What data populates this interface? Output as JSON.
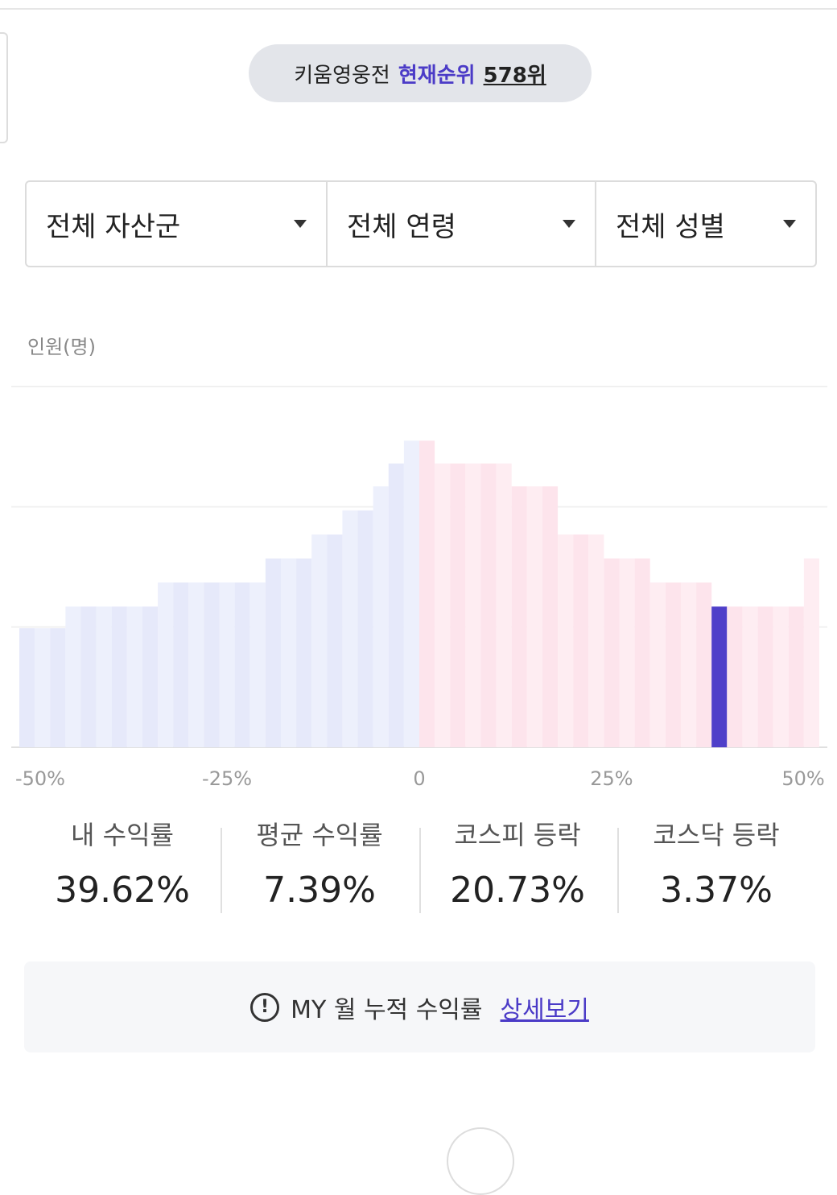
{
  "rank": {
    "event": "키움영웅전",
    "label": "현재순위",
    "value": "578위"
  },
  "filters": [
    "전체 자산군",
    "전체 연령",
    "전체 성별"
  ],
  "chart_data": {
    "type": "histogram",
    "y_label": "인원(명)",
    "bins": [
      -52,
      -50,
      -48,
      -46,
      -44,
      -42,
      -40,
      -38,
      -36,
      -34,
      -32,
      -30,
      -28,
      -26,
      -24,
      -22,
      -20,
      -18,
      -16,
      -14,
      -12,
      -10,
      -8,
      -6,
      -4,
      -2,
      0,
      2,
      4,
      6,
      8,
      10,
      12,
      14,
      16,
      18,
      20,
      22,
      24,
      26,
      28,
      30,
      32,
      34,
      36,
      38,
      40,
      42,
      44,
      46,
      48,
      50,
      52
    ],
    "values": [
      0.99,
      0.99,
      0.99,
      1.17,
      1.17,
      1.17,
      1.17,
      1.17,
      1.17,
      1.37,
      1.37,
      1.37,
      1.37,
      1.37,
      1.37,
      1.37,
      1.57,
      1.57,
      1.57,
      1.77,
      1.77,
      1.97,
      1.97,
      2.17,
      2.36,
      2.55,
      2.55,
      2.36,
      2.36,
      2.36,
      2.36,
      2.36,
      2.17,
      2.17,
      2.17,
      1.77,
      1.77,
      1.77,
      1.57,
      1.57,
      1.57,
      1.37,
      1.37,
      1.37,
      1.37,
      1.17,
      1.17,
      1.17,
      1.17,
      1.17,
      1.17,
      1.57
    ],
    "colors": [
      "#e6e9fa",
      "#edf0fc",
      "#e6e9fa",
      "#edf0fc",
      "#e6e9fa",
      "#edf0fc",
      "#e6e9fa",
      "#edf0fc",
      "#e6e9fa",
      "#edf0fc",
      "#e6e9fa",
      "#edf0fc",
      "#e6e9fa",
      "#edf0fc",
      "#e6e9fa",
      "#edf0fc",
      "#e6e9fa",
      "#edf0fc",
      "#e6e9fa",
      "#edf0fc",
      "#e6e9fa",
      "#edf0fc",
      "#e6e9fa",
      "#edf0fc",
      "#e6e9fa",
      "#edf0fc",
      "#fde4ec",
      "#feedf2",
      "#fde4ec",
      "#feedf2",
      "#fde4ec",
      "#feedf2",
      "#fde4ec",
      "#feedf2",
      "#fde4ec",
      "#feedf2",
      "#fde4ec",
      "#feedf2",
      "#fde4ec",
      "#feedf2",
      "#fde4ec",
      "#feedf2",
      "#fde4ec",
      "#feedf2",
      "#fde4ec",
      "#4f3fc9",
      "#fde4ec",
      "#feedf2",
      "#fde4ec",
      "#feedf2",
      "#fde4ec",
      "#feedf2"
    ],
    "xlim": [
      -52,
      52
    ],
    "ylim": [
      0,
      3
    ],
    "xticks": [
      {
        "value": -50,
        "label": "-50%"
      },
      {
        "value": -25,
        "label": "-25%"
      },
      0,
      {
        "value": 25,
        "label": "25%"
      },
      {
        "value": 50,
        "label": "50%"
      }
    ],
    "yticks": [
      0,
      1,
      2,
      3
    ],
    "grid": true
  },
  "stats": [
    {
      "label": "내 수익률",
      "value": "39.62%"
    },
    {
      "label": "평균 수익률",
      "value": "7.39%"
    },
    {
      "label": "코스피 등락",
      "value": "20.73%"
    },
    {
      "label": "코스닥 등락",
      "value": "3.37%"
    }
  ],
  "info": {
    "text": "MY 월 누적 수익률",
    "link": "상세보기"
  }
}
